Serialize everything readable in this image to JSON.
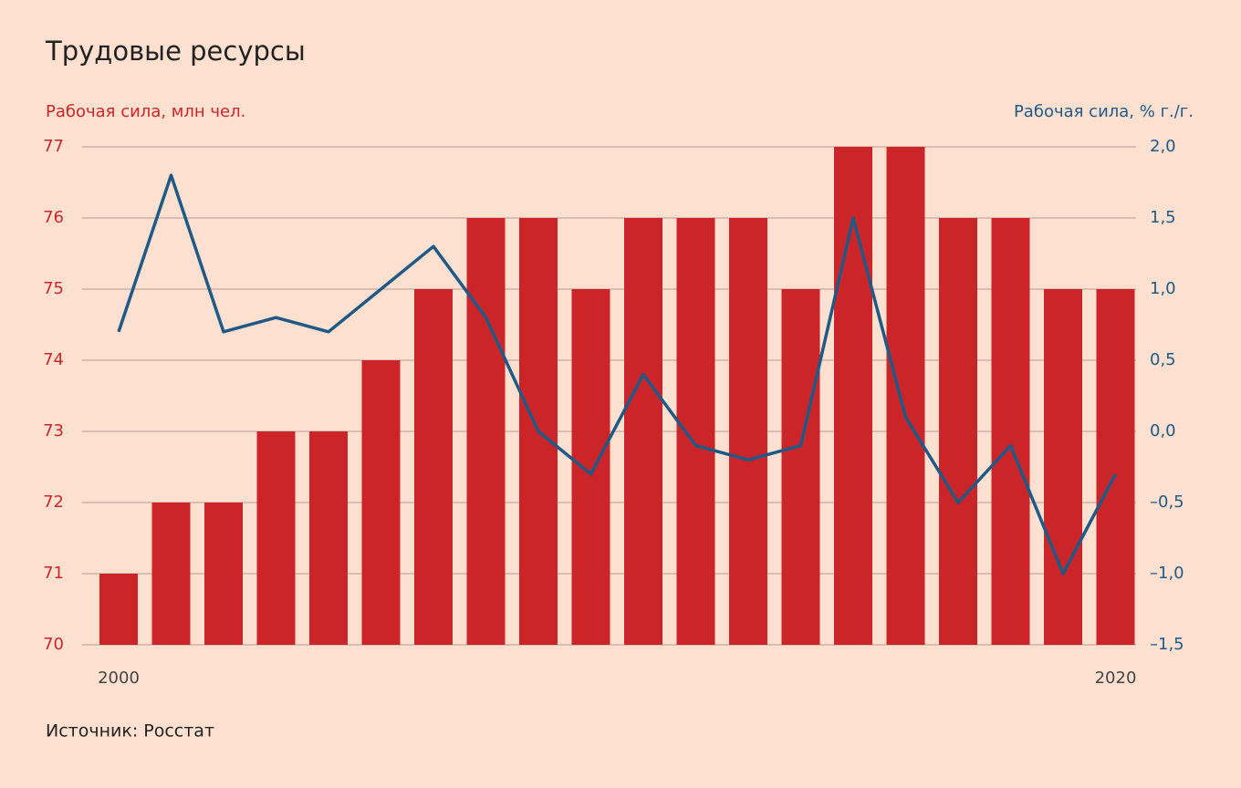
{
  "chart_data": {
    "type": "bar-line",
    "title": "Трудовые ресурсы",
    "y_label": "Рабочая сила, млн чел.",
    "y2_label": "Рабочая сила, % г./г.",
    "source": "Источник: Росстат",
    "categories": [
      "2000",
      null,
      null,
      null,
      null,
      null,
      null,
      null,
      null,
      null,
      null,
      null,
      null,
      null,
      null,
      null,
      null,
      null,
      null,
      "2020"
    ],
    "series": [
      {
        "name": "Рабочая сила, млн чел.",
        "type": "bar",
        "color": "#cc2529",
        "axis": "y",
        "values": [
          71,
          72,
          72,
          73,
          73,
          74,
          75,
          76,
          76,
          75,
          76,
          76,
          76,
          75,
          77,
          77,
          76,
          76,
          75,
          75
        ]
      },
      {
        "name": "Рабочая сила, % г./г.",
        "type": "line",
        "color": "#1f5a87",
        "axis": "y2",
        "values": [
          0.7,
          1.8,
          0.7,
          0.8,
          0.7,
          1.0,
          1.3,
          0.8,
          0.0,
          -0.3,
          0.4,
          -0.1,
          -0.2,
          -0.1,
          1.5,
          0.1,
          -0.5,
          -0.1,
          -1.0,
          -0.3
        ]
      }
    ],
    "ylim": [
      70,
      77
    ],
    "yticks": [
      70,
      71,
      72,
      73,
      74,
      75,
      76,
      77
    ],
    "y2lim": [
      -1.5,
      2.0
    ],
    "y2ticks": [
      {
        "value": -1.5,
        "label": "–1,5"
      },
      {
        "value": -1.0,
        "label": "–1,0"
      },
      {
        "value": -0.5,
        "label": "–0,5"
      },
      {
        "value": 0,
        "label": "0,0"
      },
      {
        "value": 0.5,
        "label": "0,5"
      },
      {
        "value": 1.0,
        "label": "1,0"
      },
      {
        "value": 1.5,
        "label": "1,5"
      },
      {
        "value": 2.0,
        "label": "2,0"
      }
    ],
    "grid": true
  }
}
